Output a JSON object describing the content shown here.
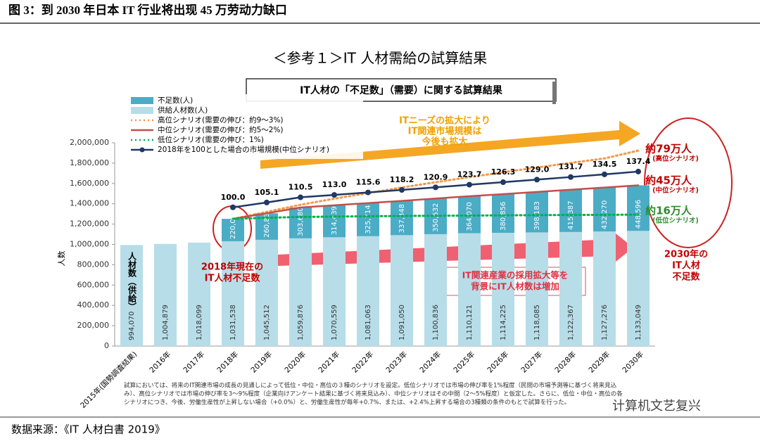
{
  "header": {
    "title": "图 3：到 2030 年日本 IT 行业将出现 45 万劳动力缺口"
  },
  "chart_data": {
    "type": "bar",
    "subtitle": "＜参考１＞IT 人材需給の試算結果",
    "box_title": "IT人材の「不足数」（需要）に関する試算結果",
    "y_label": "人数",
    "categories": [
      "2015年(国勢調査結果)",
      "2016年",
      "2017年",
      "2018年",
      "2019年",
      "2020年",
      "2021年",
      "2022年",
      "2023年",
      "2024年",
      "2025年",
      "2026年",
      "2027年",
      "2028年",
      "2029年",
      "2030年"
    ],
    "series": [
      {
        "name": "不足数(人)",
        "type": "bar",
        "color": "#4bacc6",
        "values": [
          null,
          null,
          null,
          220000,
          260835,
          303680,
          314439,
          325714,
          337348,
          350532,
          364070,
          380856,
          398183,
          415387,
          432270,
          448596
        ],
        "value_labels": [
          null,
          null,
          null,
          "220,000",
          "260,835",
          "303,680",
          "314,439",
          "325,714",
          "337,348",
          "350,532",
          "364,070",
          "380,856",
          "398,183",
          "415,387",
          "432,270",
          "448,596"
        ]
      },
      {
        "name": "供給人材数(人)",
        "type": "bar",
        "color": "#b7dde8",
        "values": [
          994070,
          1004879,
          1018099,
          1031538,
          1045512,
          1059876,
          1070559,
          1081063,
          1091050,
          1100836,
          1110121,
          1114225,
          1118085,
          1122367,
          1127276,
          1133049
        ],
        "value_labels": [
          "994,070",
          "1,004,879",
          "1,018,099",
          "1,031,538",
          "1,045,512",
          "1,059,876",
          "1,070,559",
          "1,081,063",
          "1,091,050",
          "1,100,836",
          "1,110,121",
          "1,114,225",
          "1,118,085",
          "1,122,367",
          "1,127,276",
          "1,133,049"
        ]
      },
      {
        "name": "高位シナリオ(需要の伸び：約9～3%)",
        "type": "line",
        "style": "dotted",
        "color": "#f79646",
        "values": [
          null,
          null,
          null,
          1251538,
          1320000,
          1390000,
          1450000,
          1505000,
          1560000,
          1612000,
          1662000,
          1710000,
          1757000,
          1802000,
          1846000,
          1923000
        ]
      },
      {
        "name": "中位シナリオ(需要の伸び：約5～2%)",
        "type": "line",
        "style": "solid",
        "color": "#c0504d",
        "values": [
          null,
          null,
          null,
          1251538,
          1306347,
          1363556,
          1384998,
          1406777,
          1428398,
          1451368,
          1474191,
          1495081,
          1516268,
          1537754,
          1559546,
          1581645
        ]
      },
      {
        "name": "低位シナリオ(需要の伸び：1%)",
        "type": "line",
        "style": "dotted",
        "color": "#00b050",
        "values": [
          null,
          null,
          null,
          1251538,
          1262000,
          1270000,
          1274000,
          1277000,
          1280000,
          1282000,
          1284000,
          1286000,
          1288000,
          1290000,
          1291000,
          1293000
        ]
      },
      {
        "name": "2018年を100とした場合の市場規模(中位シナリオ)",
        "type": "line",
        "style": "marker",
        "color": "#1f3864",
        "axis": "y2",
        "values": [
          null,
          null,
          null,
          100,
          105.1,
          110.5,
          113,
          115.6,
          118.2,
          120.9,
          123.7,
          126.3,
          129,
          131.7,
          134.5,
          137.4
        ],
        "value_labels": [
          null,
          null,
          null,
          "100.0",
          "105.1",
          "110.5",
          "113.0",
          "115.6",
          "118.2",
          "120.9",
          "123.7",
          "126.3",
          "129.0",
          "131.7",
          "134.5",
          "137.4"
        ]
      }
    ],
    "ylim": [
      0,
      2000000
    ],
    "yticks": [
      {
        "value": 0,
        "label": "0"
      },
      {
        "value": 200000,
        "label": "200,000"
      },
      {
        "value": 400000,
        "label": "400,000"
      },
      {
        "value": 600000,
        "label": "600,000"
      },
      {
        "value": 800000,
        "label": "800,000"
      },
      {
        "value": 1000000,
        "label": "1,000,000"
      },
      {
        "value": 1200000,
        "label": "1,200,000"
      },
      {
        "value": 1400000,
        "label": "1,400,000"
      },
      {
        "value": 1600000,
        "label": "1,600,000"
      },
      {
        "value": 1800000,
        "label": "1,800,000"
      },
      {
        "value": 2000000,
        "label": "2,000,000"
      }
    ],
    "y2lim": [
      -45,
      167.5
    ],
    "annotations": [
      "約79万人",
      "(高位シナリオ)",
      "約45万人",
      "(中位シナリオ)",
      "約16万人",
      "(低位シナリオ)",
      "2030年の",
      "IT人材",
      "不足数",
      "ITニーズの拡大により",
      "IT関連市場規模は",
      "今後も拡大",
      "IT関連産業の採用拡大等を",
      "背景にIT人材数は増加",
      "2018年現在の",
      "IT人材不足数",
      "人材数（供給）"
    ],
    "footnote": [
      "試算においては、将来のIT関連市場の成長の見通しによって低位・中位・高位の３種のシナリオを設定。低位シナリオでは市場の伸び率を1%程度（民間の市場予測等に基づく将来見込",
      "み）、高位シナリオでは市場の伸び率を3～9%程度（企業向けアンケート結果に基づく将来見込み）、中位シナリオはその中間（2～5%程度）と仮定した。さらに、低位・中位・高位の各",
      "シナリオにつき、今後、労働生産性が上昇しない場合（+0.0%）と、労働生産性が毎年+0.7%、または、+2.4%上昇する場合の3種類の条件のもとで試算を行った。"
    ]
  },
  "watermark": "计算机文艺复兴",
  "source": "数据来源：《IT 人材白書 2019》"
}
